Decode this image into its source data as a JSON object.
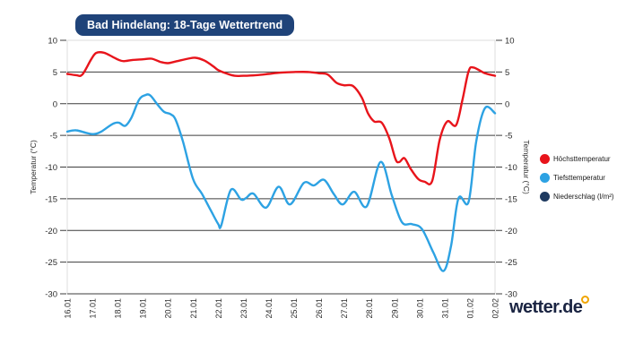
{
  "header": {
    "title": "Bad Hindelang: 18-Tage Wettertrend"
  },
  "colors": {
    "badge_bg": "#1f4379",
    "max_temp_red": "#e8141b",
    "min_temp_blue": "#2da2e3",
    "precip_navy": "#1f3a60",
    "grid_dark": "#3d3d3d",
    "grid_light": "#dcdcdc",
    "axis_text": "#2b2b2b",
    "logo_navy": "#1a2442",
    "logo_dot_yellow": "#f0a500"
  },
  "chart_data": {
    "type": "line",
    "title": "Bad Hindelang: 18-Tage Wettertrend",
    "categories": [
      "16.01",
      "17.01",
      "18.01",
      "19.01",
      "20.01",
      "21.01",
      "22.01",
      "23.01",
      "24.01",
      "25.01",
      "26.01",
      "27.01",
      "28.01",
      "29.01",
      "30.01",
      "31.01",
      "01.02",
      "02.02"
    ],
    "ylabel_left": "Temperatur (°C)",
    "ylabel_right": "Temperatur (°C)",
    "ylim": [
      -30,
      10
    ],
    "yticks": [
      10,
      5,
      0,
      -5,
      -10,
      -15,
      -20,
      -25,
      -30
    ],
    "grid": "horizontal",
    "legend_position": "right",
    "series": [
      {
        "name": "Höchsttemperatur",
        "color": "#e8141b",
        "values": [
          4.7,
          7.8,
          7.0,
          7.0,
          6.4,
          7.2,
          5.3,
          4.4,
          4.7,
          5.0,
          4.7,
          2.8,
          -2.8,
          -8.8,
          -12.2,
          -2.9,
          5.6,
          4.4
        ],
        "path_points": [
          [
            0,
            4.7
          ],
          [
            0.35,
            4.5
          ],
          [
            0.6,
            4.6
          ],
          [
            0.95,
            7.0
          ],
          [
            1.15,
            8.0
          ],
          [
            1.45,
            8.05
          ],
          [
            1.8,
            7.4
          ],
          [
            2.05,
            6.9
          ],
          [
            2.25,
            6.7
          ],
          [
            2.6,
            6.9
          ],
          [
            3.0,
            7.0
          ],
          [
            3.35,
            7.1
          ],
          [
            3.7,
            6.6
          ],
          [
            4.0,
            6.4
          ],
          [
            4.35,
            6.7
          ],
          [
            4.8,
            7.1
          ],
          [
            5.1,
            7.25
          ],
          [
            5.45,
            6.8
          ],
          [
            5.8,
            5.9
          ],
          [
            6.0,
            5.3
          ],
          [
            6.3,
            4.8
          ],
          [
            6.65,
            4.4
          ],
          [
            7.0,
            4.4
          ],
          [
            7.5,
            4.5
          ],
          [
            8.0,
            4.7
          ],
          [
            8.5,
            4.9
          ],
          [
            9.0,
            5.0
          ],
          [
            9.6,
            5.0
          ],
          [
            10.0,
            4.8
          ],
          [
            10.35,
            4.6
          ],
          [
            10.7,
            3.3
          ],
          [
            11.0,
            2.9
          ],
          [
            11.35,
            2.8
          ],
          [
            11.7,
            1.0
          ],
          [
            11.95,
            -1.5
          ],
          [
            12.2,
            -2.8
          ],
          [
            12.5,
            -3.0
          ],
          [
            12.8,
            -5.5
          ],
          [
            13.05,
            -8.8
          ],
          [
            13.2,
            -9.2
          ],
          [
            13.4,
            -8.6
          ],
          [
            13.65,
            -10.3
          ],
          [
            13.95,
            -11.9
          ],
          [
            14.2,
            -12.3
          ],
          [
            14.5,
            -12.2
          ],
          [
            14.8,
            -5.7
          ],
          [
            15.1,
            -2.8
          ],
          [
            15.45,
            -3.4
          ],
          [
            15.7,
            0.5
          ],
          [
            15.95,
            5.1
          ],
          [
            16.15,
            5.7
          ],
          [
            16.6,
            4.8
          ],
          [
            17,
            4.4
          ]
        ]
      },
      {
        "name": "Tiefsttemperatur",
        "color": "#2da2e3",
        "values": [
          -4.4,
          -4.8,
          -3.2,
          1.3,
          -1.7,
          -11.9,
          -19.0,
          -15.0,
          -14.5,
          -12.9,
          -12.1,
          -15.5,
          -13.8,
          -18.0,
          -19.8,
          -26.3,
          -15.3,
          -1.5
        ],
        "path_points": [
          [
            0,
            -4.4
          ],
          [
            0.35,
            -4.2
          ],
          [
            0.75,
            -4.6
          ],
          [
            1.05,
            -4.8
          ],
          [
            1.35,
            -4.4
          ],
          [
            1.8,
            -3.2
          ],
          [
            2.05,
            -3.0
          ],
          [
            2.3,
            -3.5
          ],
          [
            2.55,
            -2.2
          ],
          [
            2.85,
            0.6
          ],
          [
            3.1,
            1.35
          ],
          [
            3.3,
            1.3
          ],
          [
            3.6,
            -0.2
          ],
          [
            3.85,
            -1.3
          ],
          [
            4.1,
            -1.65
          ],
          [
            4.3,
            -2.5
          ],
          [
            4.6,
            -6.0
          ],
          [
            5.0,
            -11.9
          ],
          [
            5.35,
            -14.2
          ],
          [
            5.7,
            -16.8
          ],
          [
            6.0,
            -19.0
          ],
          [
            6.12,
            -19.2
          ],
          [
            6.5,
            -13.6
          ],
          [
            6.9,
            -15.1
          ],
          [
            7.1,
            -14.9
          ],
          [
            7.4,
            -14.2
          ],
          [
            7.9,
            -16.4
          ],
          [
            8.4,
            -13.1
          ],
          [
            8.85,
            -15.9
          ],
          [
            9.4,
            -12.5
          ],
          [
            9.8,
            -12.9
          ],
          [
            10.2,
            -12.0
          ],
          [
            10.6,
            -14.3
          ],
          [
            10.95,
            -15.9
          ],
          [
            11.4,
            -13.9
          ],
          [
            11.9,
            -16.2
          ],
          [
            12.45,
            -9.2
          ],
          [
            12.9,
            -14.5
          ],
          [
            13.3,
            -18.7
          ],
          [
            13.7,
            -19.0
          ],
          [
            14.1,
            -19.8
          ],
          [
            14.55,
            -23.5
          ],
          [
            14.95,
            -26.4
          ],
          [
            15.25,
            -22.5
          ],
          [
            15.55,
            -14.9
          ],
          [
            15.95,
            -15.5
          ],
          [
            16.25,
            -6.0
          ],
          [
            16.6,
            -0.7
          ],
          [
            17,
            -1.5
          ]
        ]
      },
      {
        "name": "Niederschlag (l/m²)",
        "color": "#1f3a60",
        "values": []
      }
    ]
  },
  "legend": {
    "items": [
      {
        "label": "Höchsttemperatur",
        "color": "#e8141b"
      },
      {
        "label": "Tiefsttemperatur",
        "color": "#2da2e3"
      },
      {
        "label": "Niederschlag (l/m²)",
        "color": "#1f3a60"
      }
    ]
  },
  "logo": {
    "text": "wetter.de"
  }
}
